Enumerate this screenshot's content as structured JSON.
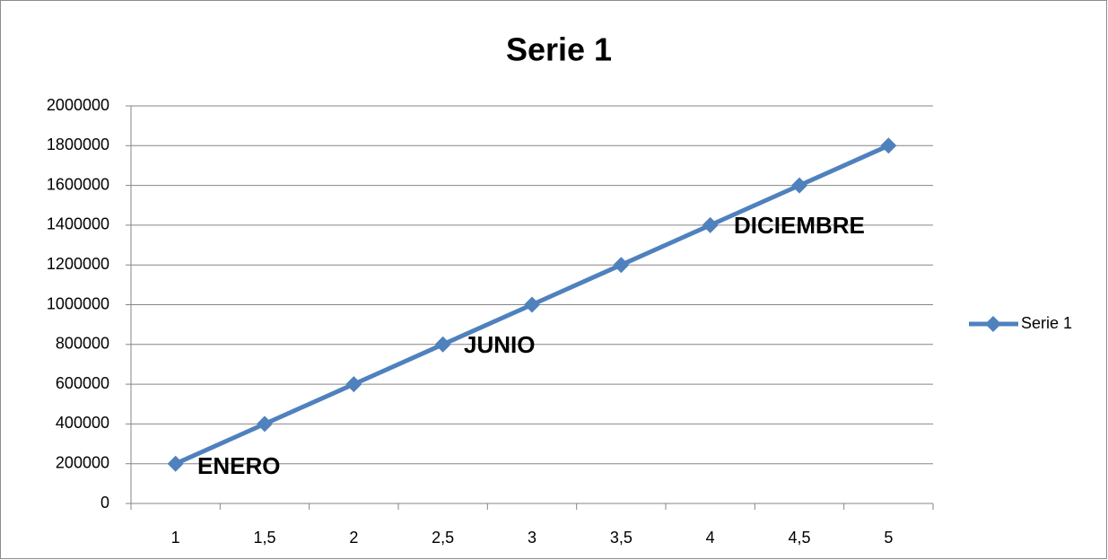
{
  "chart_data": {
    "type": "line",
    "title": "Serie 1",
    "categories": [
      "1",
      "1,5",
      "2",
      "2,5",
      "3",
      "3,5",
      "4",
      "4,5",
      "5"
    ],
    "series": [
      {
        "name": "Serie 1",
        "color": "#4f81bd",
        "values": [
          200000,
          400000,
          600000,
          800000,
          1000000,
          1200000,
          1400000,
          1600000,
          1800000
        ]
      }
    ],
    "annotations": [
      "ENERO",
      "JUNIO",
      "DICIEMBRE"
    ],
    "ylim": [
      0,
      2000000
    ],
    "yticks": [
      0,
      200000,
      400000,
      600000,
      800000,
      1000000,
      1200000,
      1400000,
      1600000,
      1800000,
      2000000
    ],
    "grid": true,
    "legend": "right"
  }
}
